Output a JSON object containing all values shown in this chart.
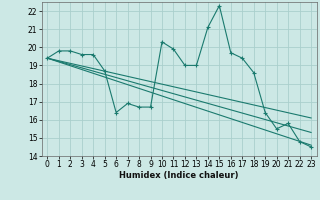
{
  "xlabel": "Humidex (Indice chaleur)",
  "background_color": "#cce8e5",
  "grid_color": "#aacfcc",
  "line_color": "#1a7a6e",
  "xlim": [
    -0.5,
    23.5
  ],
  "ylim": [
    14,
    22.5
  ],
  "yticks": [
    14,
    15,
    16,
    17,
    18,
    19,
    20,
    21,
    22
  ],
  "xticks": [
    0,
    1,
    2,
    3,
    4,
    5,
    6,
    7,
    8,
    9,
    10,
    11,
    12,
    13,
    14,
    15,
    16,
    17,
    18,
    19,
    20,
    21,
    22,
    23
  ],
  "series1_x": [
    0,
    1,
    2,
    3,
    4,
    5,
    6,
    7,
    8,
    9,
    10,
    11,
    12,
    13,
    14,
    15,
    16,
    17,
    18,
    19,
    20,
    21,
    22,
    23
  ],
  "series1_y": [
    19.4,
    19.8,
    19.8,
    19.6,
    19.6,
    18.7,
    16.4,
    16.9,
    16.7,
    16.7,
    20.3,
    19.9,
    19.0,
    19.0,
    21.1,
    22.3,
    19.7,
    19.4,
    18.6,
    16.4,
    15.5,
    15.8,
    14.8,
    14.5
  ],
  "series2_x": [
    0,
    23
  ],
  "series2_y": [
    19.4,
    16.1
  ],
  "series3_x": [
    0,
    23
  ],
  "series3_y": [
    19.4,
    15.3
  ],
  "series4_x": [
    0,
    23
  ],
  "series4_y": [
    19.4,
    14.6
  ]
}
